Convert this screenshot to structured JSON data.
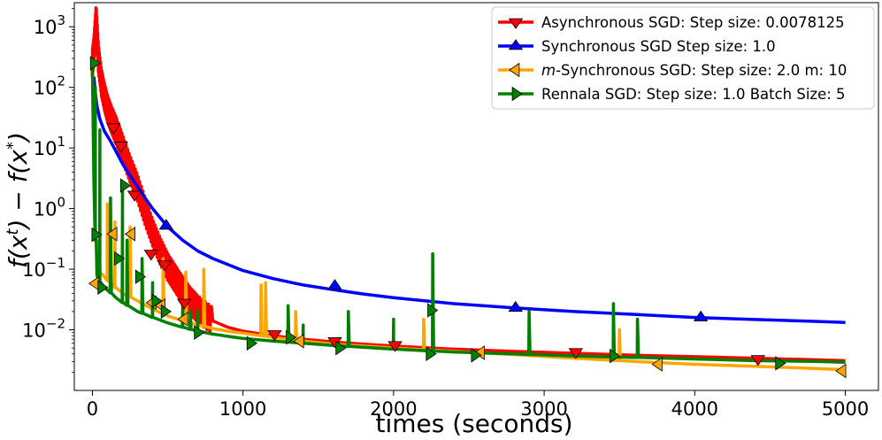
{
  "chart_data": {
    "type": "line",
    "xlabel": "times (seconds)",
    "ylabel": "f(x^t) − f(x^*)",
    "xlim": [
      -120,
      5220
    ],
    "ylim": [
      0.001,
      2500
    ],
    "yscale": "log",
    "x_ticks": [
      0,
      1000,
      2000,
      3000,
      4000,
      5000
    ],
    "y_ticks": [
      {
        "value": 0.01,
        "base": "10",
        "exp": "−2"
      },
      {
        "value": 0.1,
        "base": "10",
        "exp": "−1"
      },
      {
        "value": 1,
        "base": "10",
        "exp": "0"
      },
      {
        "value": 10,
        "base": "10",
        "exp": "1"
      },
      {
        "value": 100,
        "base": "10",
        "exp": "2"
      },
      {
        "value": 1000,
        "base": "10",
        "exp": "3"
      }
    ],
    "grid": false,
    "legend_position": "top-right",
    "series": [
      {
        "name": "Asynchronous SGD: Step size: 0.0078125",
        "color": "#ff0000",
        "marker": "triangle-down",
        "x": [
          0,
          10,
          25,
          40,
          60,
          80,
          100,
          130,
          160,
          200,
          250,
          300,
          350,
          400,
          450,
          500,
          550,
          600,
          650,
          700,
          800,
          900,
          1000,
          1200,
          1400,
          1600,
          1800,
          2000,
          2400,
          2800,
          3200,
          3600,
          4000,
          4400,
          4800,
          5000
        ],
        "y": [
          250,
          400,
          1400,
          300,
          120,
          70,
          45,
          28,
          19,
          10,
          4.5,
          2.2,
          0.9,
          0.4,
          0.2,
          0.11,
          0.07,
          0.045,
          0.03,
          0.022,
          0.014,
          0.011,
          0.0095,
          0.008,
          0.007,
          0.0063,
          0.0058,
          0.0054,
          0.0048,
          0.0044,
          0.0041,
          0.0038,
          0.0036,
          0.0034,
          0.0032,
          0.0031
        ],
        "markers_x": [
          140,
          190,
          280,
          390,
          480,
          610,
          1210,
          1610,
          2010,
          3210,
          4420
        ],
        "markers_y": [
          22,
          11,
          1.7,
          0.18,
          0.12,
          0.028,
          0.0085,
          0.0065,
          0.0056,
          0.0043,
          0.0033
        ]
      },
      {
        "name": "Synchronous SGD Step size: 1.0",
        "color": "#0000ff",
        "marker": "triangle-up",
        "x": [
          10,
          20,
          30,
          50,
          80,
          120,
          160,
          200,
          250,
          300,
          350,
          400,
          500,
          600,
          700,
          800,
          1000,
          1200,
          1400,
          1600,
          1800,
          2000,
          2400,
          2800,
          3200,
          3600,
          4000,
          4400,
          4800,
          5000
        ],
        "y": [
          150,
          80,
          50,
          30,
          19,
          13,
          8.5,
          5.5,
          3.5,
          2.3,
          1.5,
          1.0,
          0.5,
          0.3,
          0.2,
          0.15,
          0.095,
          0.07,
          0.055,
          0.046,
          0.039,
          0.034,
          0.027,
          0.023,
          0.02,
          0.018,
          0.016,
          0.0148,
          0.0138,
          0.0132
        ],
        "markers_x": [
          490,
          1610,
          2810,
          4040
        ],
        "markers_y": [
          0.52,
          0.053,
          0.023,
          0.016
        ]
      },
      {
        "name": "m-Synchronous  SGD: Step size: 2.0 m: 10",
        "color": "#ffa500",
        "marker": "triangle-left",
        "x": [
          0,
          10,
          20,
          30,
          50,
          80,
          100,
          150,
          200,
          300,
          400,
          500,
          600,
          700,
          800,
          900,
          1000,
          1200,
          1400,
          1600,
          2000,
          2400,
          2800,
          3200,
          3600,
          4000,
          4400,
          4800,
          5000
        ],
        "y": [
          250,
          8,
          0.5,
          0.12,
          0.09,
          0.075,
          0.065,
          0.05,
          0.04,
          0.03,
          0.022,
          0.017,
          0.014,
          0.012,
          0.0105,
          0.0095,
          0.0088,
          0.0075,
          0.0065,
          0.0058,
          0.005,
          0.0044,
          0.0039,
          0.0034,
          0.003,
          0.0027,
          0.0025,
          0.0023,
          0.0022
        ],
        "spikes_x": [
          100,
          150,
          250,
          470,
          620,
          740,
          1120,
          1150,
          1350,
          2200,
          3500
        ],
        "spikes_y": [
          1.2,
          0.6,
          0.5,
          0.15,
          0.09,
          0.1,
          0.055,
          0.06,
          0.02,
          0.015,
          0.01
        ],
        "markers_x": [
          20,
          140,
          260,
          400,
          460,
          610,
          1380,
          2580,
          3760,
          4980
        ],
        "markers_y": [
          0.058,
          0.38,
          0.38,
          0.028,
          0.025,
          0.015,
          0.0065,
          0.0042,
          0.0027,
          0.0021
        ]
      },
      {
        "name": "Rennala SGD: Step size: 1.0 Batch Size: 5",
        "color": "#008000",
        "marker": "triangle-right",
        "x": [
          0,
          10,
          20,
          30,
          50,
          80,
          100,
          150,
          200,
          300,
          400,
          500,
          600,
          700,
          800,
          900,
          1000,
          1200,
          1400,
          1600,
          2000,
          2400,
          2800,
          3200,
          3600,
          4000,
          4400,
          4800,
          5000
        ],
        "y": [
          250,
          3,
          0.3,
          0.08,
          0.06,
          0.05,
          0.045,
          0.035,
          0.028,
          0.02,
          0.016,
          0.013,
          0.011,
          0.0095,
          0.0085,
          0.0078,
          0.0072,
          0.0065,
          0.006,
          0.0055,
          0.0048,
          0.0043,
          0.004,
          0.0037,
          0.0035,
          0.0033,
          0.0031,
          0.003,
          0.0029
        ],
        "spikes_x": [
          20,
          50,
          120,
          200,
          230,
          330,
          400,
          600,
          650,
          700,
          1300,
          1400,
          1700,
          2000,
          2260,
          2900,
          3460,
          3620
        ],
        "spikes_y": [
          100,
          20,
          1.5,
          2.5,
          0.3,
          0.15,
          0.06,
          0.03,
          0.02,
          0.02,
          0.025,
          0.012,
          0.02,
          0.015,
          0.18,
          0.02,
          0.027,
          0.015
        ],
        "markers_x": [
          10,
          20,
          60,
          170,
          210,
          310,
          420,
          480,
          700,
          1050,
          1310,
          1640,
          2240,
          2250,
          2540,
          3460,
          4560
        ],
        "markers_y": [
          250,
          0.37,
          0.05,
          0.15,
          2.4,
          0.075,
          0.03,
          0.02,
          0.009,
          0.006,
          0.0075,
          0.005,
          0.004,
          0.021,
          0.0038,
          0.0037,
          0.0028
        ]
      }
    ]
  }
}
